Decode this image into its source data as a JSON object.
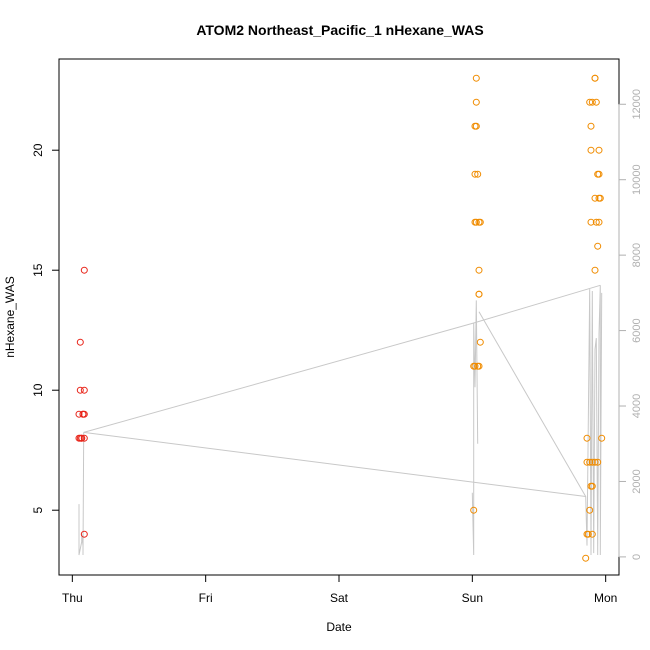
{
  "chart_data": {
    "type": "scatter",
    "title": "ATOM2 Northeast_Pacific_1 nHexane_WAS",
    "xlabel": "Date",
    "ylabel": "nHexane_WAS",
    "xlim": [
      -0.1,
      4.1
    ],
    "ylim": [
      2.3,
      23.8
    ],
    "x_ticks": [
      {
        "value": 0,
        "label": "Thu"
      },
      {
        "value": 1,
        "label": "Fri"
      },
      {
        "value": 2,
        "label": "Sat"
      },
      {
        "value": 3,
        "label": "Sun"
      },
      {
        "value": 4,
        "label": "Mon"
      }
    ],
    "y_ticks": [
      5,
      10,
      15,
      20
    ],
    "y2_ticks": [
      0,
      2000,
      4000,
      6000,
      8000,
      10000,
      12000
    ],
    "y2lim": [
      -480,
      13200
    ],
    "series": [
      {
        "color": "#e8251a",
        "points": [
          [
            0.05,
            8
          ],
          [
            0.06,
            8
          ],
          [
            0.07,
            8
          ],
          [
            0.05,
            9
          ],
          [
            0.06,
            10
          ],
          [
            0.06,
            12
          ],
          [
            0.07,
            8
          ],
          [
            0.08,
            9
          ],
          [
            0.08,
            9
          ],
          [
            0.09,
            4
          ],
          [
            0.09,
            9
          ],
          [
            0.09,
            10
          ],
          [
            0.09,
            15
          ],
          [
            0.09,
            8
          ]
        ]
      },
      {
        "color": "#f08c00",
        "points": [
          [
            3.01,
            5
          ],
          [
            3.01,
            11
          ],
          [
            3.02,
            11
          ],
          [
            3.02,
            17
          ],
          [
            3.02,
            19
          ],
          [
            3.02,
            21
          ],
          [
            3.03,
            21
          ],
          [
            3.03,
            22
          ],
          [
            3.03,
            23
          ],
          [
            3.03,
            17
          ],
          [
            3.04,
            19
          ],
          [
            3.04,
            11
          ],
          [
            3.05,
            11
          ],
          [
            3.05,
            14
          ],
          [
            3.05,
            14
          ],
          [
            3.06,
            12
          ],
          [
            3.05,
            15
          ],
          [
            3.05,
            17
          ],
          [
            3.06,
            17
          ],
          [
            3.85,
            3
          ],
          [
            3.86,
            4
          ],
          [
            3.86,
            7
          ],
          [
            3.87,
            4
          ],
          [
            3.86,
            8
          ],
          [
            3.88,
            5
          ],
          [
            3.88,
            7
          ],
          [
            3.89,
            6
          ],
          [
            3.88,
            22
          ],
          [
            3.89,
            21
          ],
          [
            3.89,
            20
          ],
          [
            3.89,
            17
          ],
          [
            3.9,
            6
          ],
          [
            3.9,
            7
          ],
          [
            3.9,
            4
          ],
          [
            3.9,
            22
          ],
          [
            3.92,
            23
          ],
          [
            3.92,
            23
          ],
          [
            3.92,
            18
          ],
          [
            3.92,
            7
          ],
          [
            3.92,
            15
          ],
          [
            3.93,
            22
          ],
          [
            3.93,
            17
          ],
          [
            3.94,
            7
          ],
          [
            3.94,
            19
          ],
          [
            3.94,
            16
          ],
          [
            3.95,
            18
          ],
          [
            3.95,
            19
          ],
          [
            3.95,
            20
          ],
          [
            3.95,
            17
          ],
          [
            3.96,
            18
          ],
          [
            3.97,
            8
          ]
        ]
      }
    ],
    "line_series": {
      "color": "#c8c8c8",
      "axis": "y2",
      "points": [
        [
          0.05,
          1400
        ],
        [
          0.05,
          50
        ],
        [
          0.07,
          400
        ],
        [
          0.07,
          600
        ],
        [
          0.08,
          300
        ],
        [
          0.08,
          50
        ],
        [
          0.085,
          3300
        ],
        [
          3.0,
          1700
        ],
        [
          3.01,
          50
        ],
        [
          3.01,
          6200
        ],
        [
          3.02,
          4500
        ],
        [
          3.03,
          6800
        ],
        [
          3.04,
          3000
        ],
        [
          3.05,
          6500
        ],
        [
          3.85,
          1600
        ],
        [
          3.86,
          300
        ],
        [
          3.88,
          7100
        ],
        [
          3.89,
          50
        ],
        [
          3.9,
          7050
        ],
        [
          3.91,
          100
        ],
        [
          3.92,
          5500
        ],
        [
          3.93,
          5800
        ],
        [
          3.94,
          50
        ],
        [
          3.95,
          5900
        ],
        [
          3.96,
          7200
        ],
        [
          3.96,
          50
        ],
        [
          3.97,
          7000
        ]
      ],
      "trend": [
        [
          0.085,
          3300
        ],
        [
          3.01,
          6200
        ],
        [
          3.96,
          7200
        ]
      ],
      "trend2": [
        [
          0.085,
          3300
        ],
        [
          3.85,
          1600
        ]
      ]
    }
  }
}
